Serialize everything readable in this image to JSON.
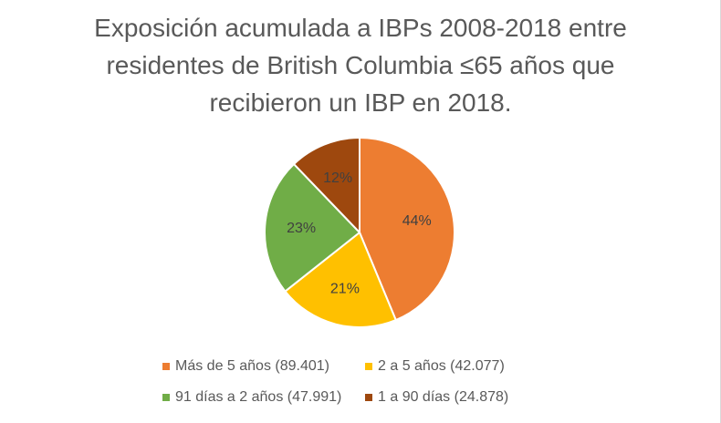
{
  "chart_data": {
    "type": "pie",
    "title_lines": [
      "Exposición acumulada a IBPs 2008-2018 entre",
      "residentes de British Columbia ≤65 años que",
      "recibieron un IBP en 2018."
    ],
    "slices": [
      {
        "label": "Más de 5 años (89.401)",
        "value": 89401,
        "percent_label": "44%",
        "color": "#ED7D31"
      },
      {
        "label": "2 a 5 años (42.077)",
        "value": 42077,
        "percent_label": "21%",
        "color": "#FFC000"
      },
      {
        "label": "91 días a 2 años (47.991)",
        "value": 47991,
        "percent_label": "23%",
        "color": "#70AD47"
      },
      {
        "label": "1 a 90 días (24.878)",
        "value": 24878,
        "percent_label": "12%",
        "color": "#9E480E"
      }
    ],
    "legend_position": "bottom"
  }
}
